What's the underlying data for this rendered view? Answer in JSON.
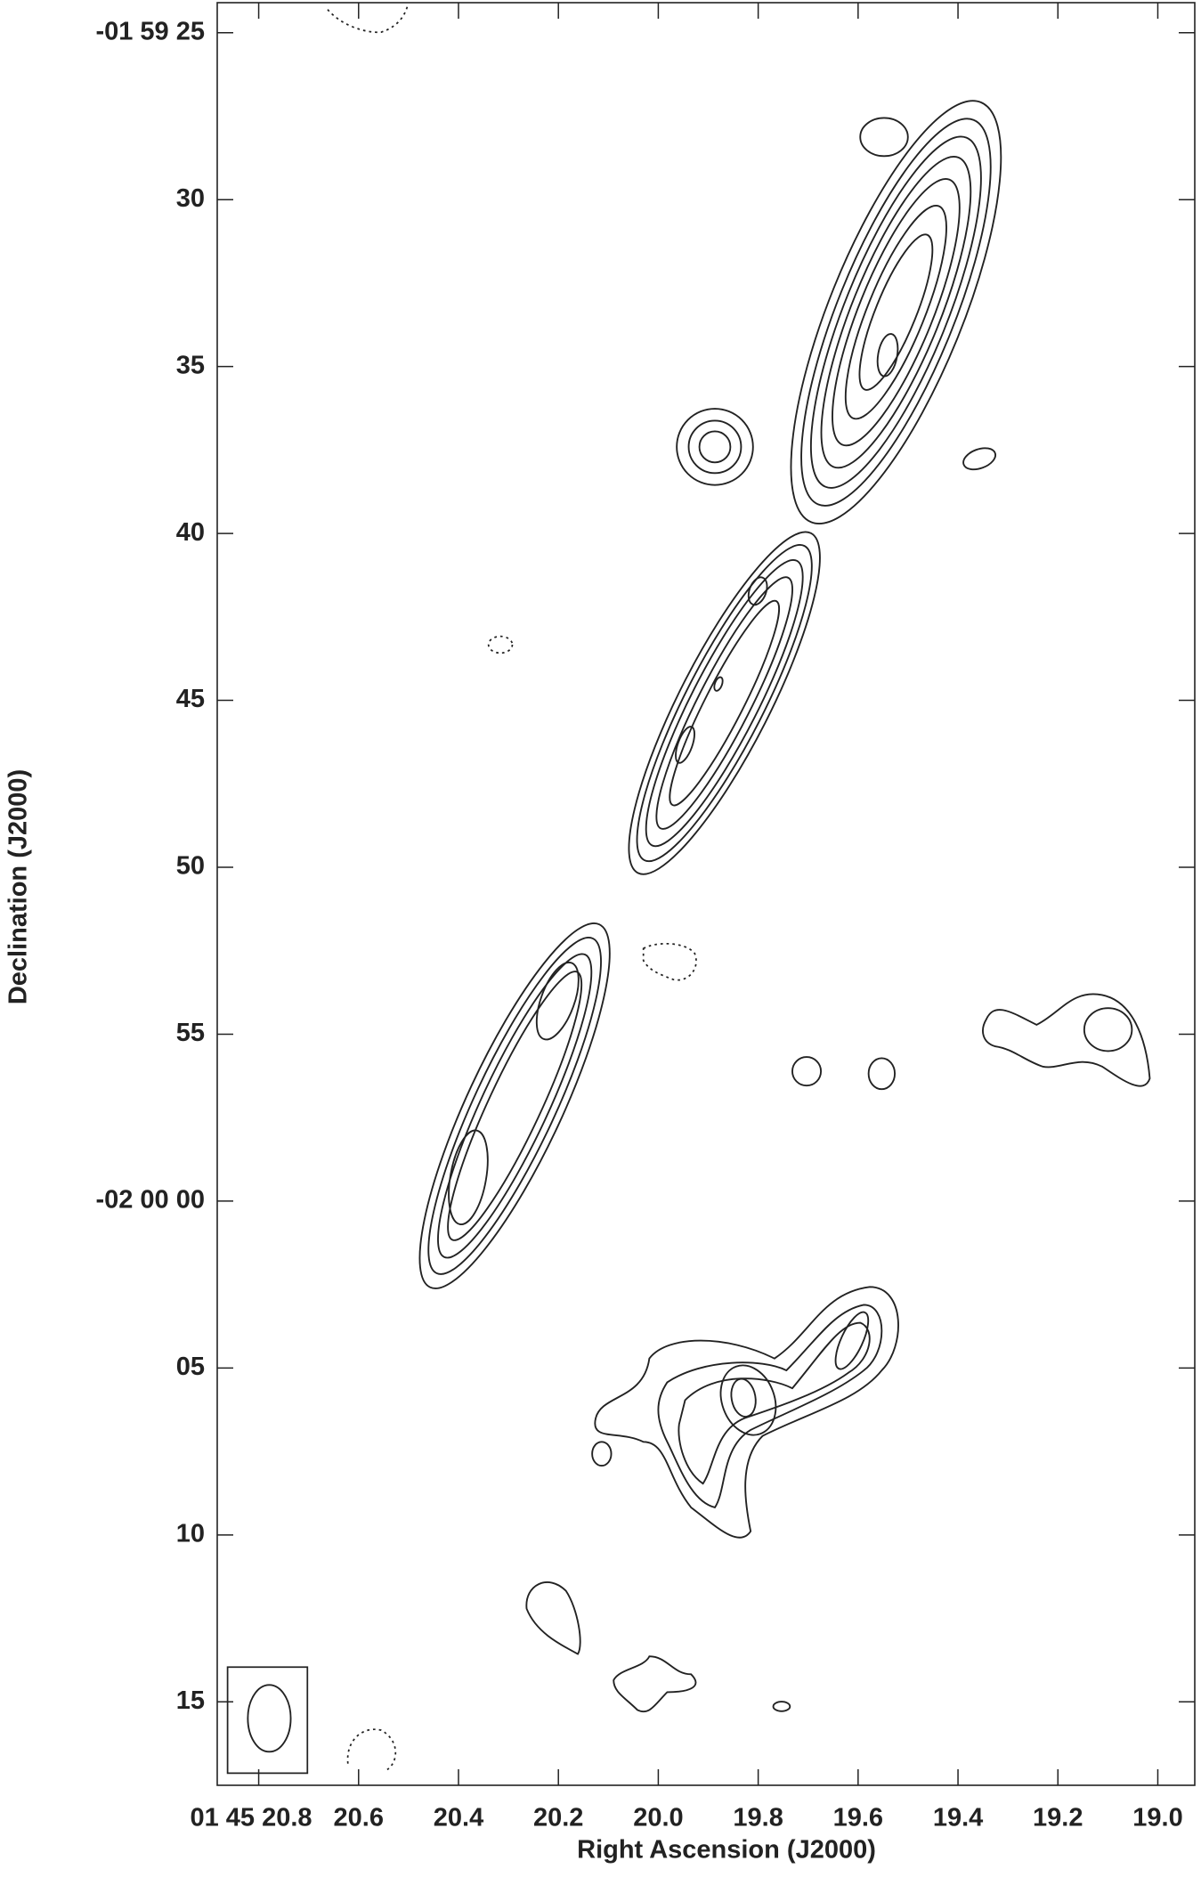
{
  "chart_data": {
    "type": "contour",
    "x_label": "Right Ascension (J2000)",
    "y_label": "Declination (J2000)",
    "xlim": [
      20.883,
      18.926
    ],
    "xticks": [
      {
        "value": 20.8,
        "label": "01 45 20.8"
      },
      20.6,
      20.4,
      20.2,
      {
        "value": 20,
        "label": "20.0"
      },
      19.8,
      19.6,
      19.4,
      19.2,
      {
        "value": 19,
        "label": "19.0"
      }
    ],
    "ylim": [
      24.1,
      77.5
    ],
    "yticks": [
      {
        "value": 25,
        "label": "-01 59 25"
      },
      30,
      35,
      40,
      45,
      50,
      55,
      {
        "value": 60,
        "label": "-02 00 00"
      },
      {
        "value": 65,
        "label": "05"
      },
      {
        "value": 70,
        "label": "10"
      },
      {
        "value": 75,
        "label": "15"
      }
    ]
  }
}
